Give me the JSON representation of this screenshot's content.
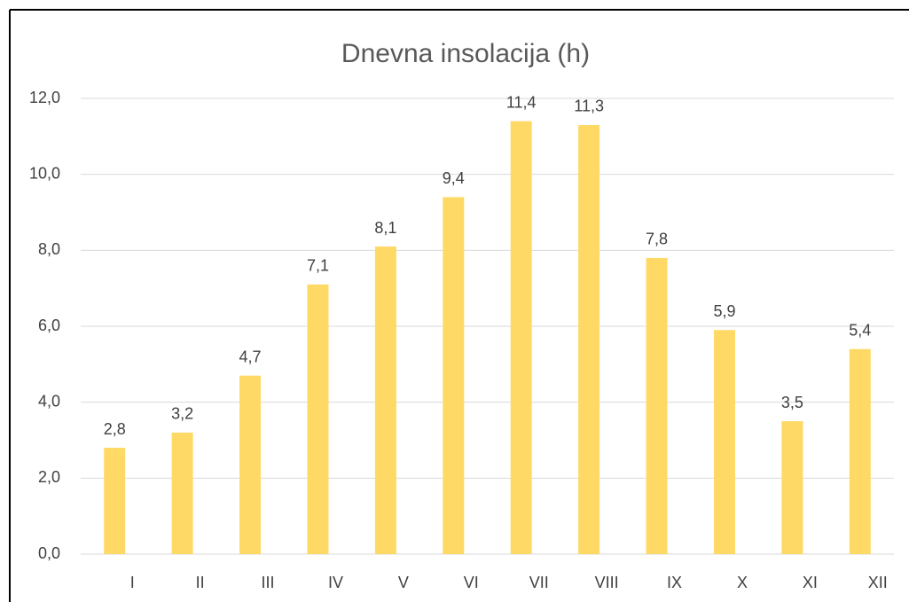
{
  "chart_data": {
    "type": "bar",
    "title": "Dnevna insolacija (h)",
    "categories": [
      "I",
      "II",
      "III",
      "IV",
      "V",
      "VI",
      "VII",
      "VIII",
      "IX",
      "X",
      "XI",
      "XII"
    ],
    "values": [
      2.8,
      3.2,
      4.7,
      7.1,
      8.1,
      9.4,
      11.4,
      11.3,
      7.8,
      5.9,
      3.5,
      5.4
    ],
    "value_labels": [
      "2,8",
      "3,2",
      "4,7",
      "7,1",
      "8,1",
      "9,4",
      "11,4",
      "11,3",
      "7,8",
      "5,9",
      "3,5",
      "5,4"
    ],
    "color": "#ffd966",
    "ylim": [
      0,
      12
    ],
    "yticks": [
      {
        "value": 0,
        "label": "0,0"
      },
      {
        "value": 2,
        "label": "2,0"
      },
      {
        "value": 4,
        "label": "4,0"
      },
      {
        "value": 6,
        "label": "6,0"
      },
      {
        "value": 8,
        "label": "8,0"
      },
      {
        "value": 10,
        "label": "10,0"
      },
      {
        "value": 12,
        "label": "12,0"
      }
    ],
    "grid": true
  }
}
